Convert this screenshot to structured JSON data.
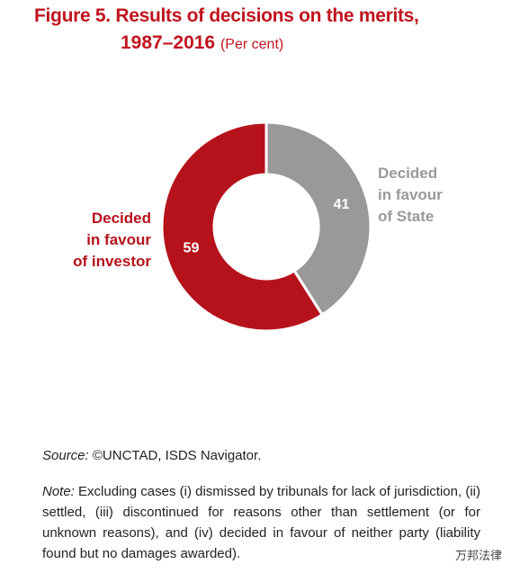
{
  "chart_data": {
    "type": "pie",
    "title": [
      "Figure 5. Results of decisions on the merits,",
      "1987–2016"
    ],
    "subtitle": "(Per cent)",
    "categories": [
      "Decided\nin favour\nof State",
      "Decided\nin favour\nof investor"
    ],
    "values": [
      41,
      59
    ],
    "colors": [
      "#999999",
      "#b5121b"
    ],
    "label_colors": [
      "#9a9a9a",
      "#b5121b"
    ],
    "hole": 0.5,
    "source_label": "Source:",
    "source": "©UNCTAD, ISDS Navigator.",
    "note_label": "Note:",
    "note": "Excluding cases (i) dismissed by tribunals for lack of jurisdiction, (ii) settled, (iii) discontinued for reasons other than settlement (or for unknown reasons), and (iv) decided in favour of neither party (liability found but no damages awarded).",
    "watermark": "万邦法律"
  }
}
